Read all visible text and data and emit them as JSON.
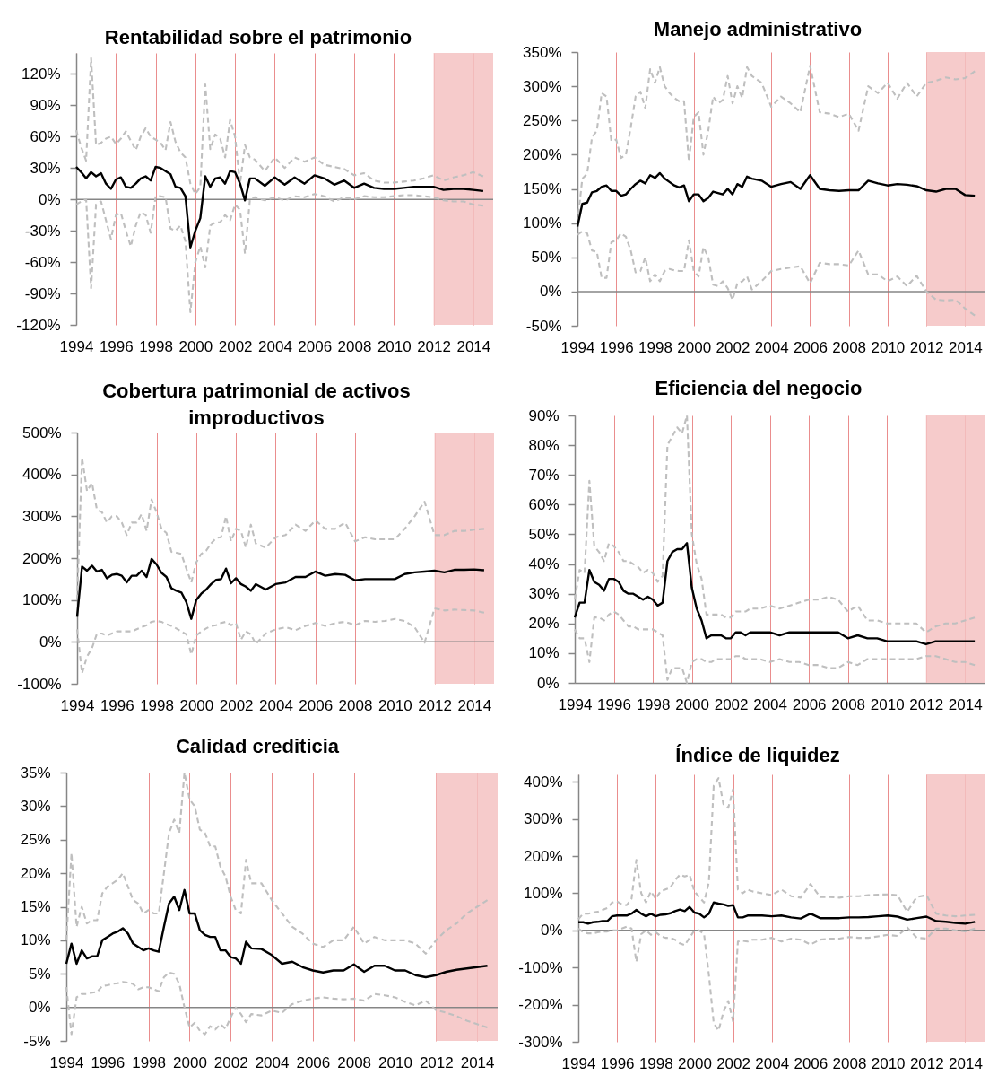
{
  "chart_data": [
    {
      "type": "line",
      "title": "Rentabilidad sobre el patrimonio",
      "x": [
        1994,
        1994.25,
        1994.5,
        1994.75,
        1995,
        1995.25,
        1995.5,
        1995.75,
        1996,
        1996.25,
        1996.5,
        1996.75,
        1997,
        1997.25,
        1997.5,
        1997.75,
        1998,
        1998.25,
        1998.5,
        1998.75,
        1999,
        1999.25,
        1999.5,
        1999.75,
        2000,
        2000.25,
        2000.5,
        2000.75,
        2001,
        2001.25,
        2001.5,
        2001.75,
        2002,
        2002.25,
        2002.5,
        2002.75,
        2003,
        2003.5,
        2004,
        2004.5,
        2005,
        2005.5,
        2006,
        2006.5,
        2007,
        2007.5,
        2008,
        2008.5,
        2009,
        2009.5,
        2010,
        2010.5,
        2011,
        2011.5,
        2012,
        2012.5,
        2013,
        2013.5,
        2014,
        2014.5
      ],
      "xlim": [
        1994,
        2015
      ],
      "xticks": [
        1994,
        1996,
        1998,
        2000,
        2002,
        2004,
        2006,
        2008,
        2010,
        2012,
        2014
      ],
      "ylim": [
        -120,
        140
      ],
      "yticks": [
        {
          "value": -120,
          "label": "-120%"
        },
        {
          "value": -90,
          "label": "-90%"
        },
        {
          "value": -60,
          "label": "-60%"
        },
        {
          "value": -30,
          "label": "-30%"
        },
        {
          "value": 0,
          "label": "0%"
        },
        {
          "value": 30,
          "label": "30%"
        },
        {
          "value": 60,
          "label": "60%"
        },
        {
          "value": 90,
          "label": "90%"
        },
        {
          "value": 120,
          "label": "120%"
        }
      ],
      "grid": "x",
      "ref_lines": [
        {
          "axis": "y",
          "value": 0,
          "color": "#868686"
        }
      ],
      "bands": [
        {
          "axis": "x",
          "from": 2012,
          "to": 2015,
          "color": "#f4c2c2"
        }
      ],
      "series": [
        {
          "color": "#bfbfbf",
          "line_style": "dashed",
          "values": [
            66,
            50,
            37,
            135,
            52,
            54,
            58,
            60,
            53,
            58,
            65,
            56,
            47,
            60,
            68,
            60,
            57,
            54,
            47,
            74,
            55,
            45,
            40,
            15,
            5,
            12,
            110,
            48,
            62,
            58,
            40,
            76,
            60,
            15,
            52,
            40,
            38,
            27,
            40,
            30,
            40,
            36,
            40,
            33,
            31,
            29,
            23,
            25,
            18,
            16,
            16,
            17,
            18,
            20,
            23,
            18,
            21,
            23,
            26,
            22
          ]
        },
        {
          "color": "#bfbfbf",
          "line_style": "dashed",
          "values": [
            -5,
            -2,
            0,
            -85,
            -5,
            -2,
            -20,
            -38,
            -15,
            -13,
            -30,
            -45,
            -25,
            -12,
            -15,
            -32,
            3,
            3,
            2,
            -28,
            -30,
            -25,
            -40,
            -108,
            -60,
            -45,
            -65,
            -25,
            -22,
            -22,
            -15,
            -20,
            -5,
            -10,
            -52,
            0,
            2,
            -1,
            2,
            -1,
            3,
            2,
            5,
            3,
            -2,
            2,
            0,
            3,
            2,
            2,
            3,
            4,
            4,
            3,
            2,
            -1,
            -2,
            -2,
            -5,
            -6
          ]
        },
        {
          "color": "#000000",
          "line_style": "solid",
          "values": [
            31,
            26,
            20,
            26,
            22,
            25,
            15,
            10,
            19,
            21,
            12,
            11,
            15,
            20,
            22,
            18,
            31,
            30,
            27,
            24,
            12,
            11,
            3,
            -46,
            -30,
            -18,
            22,
            12,
            20,
            21,
            15,
            27,
            26,
            15,
            -1,
            20,
            20,
            13,
            21,
            14,
            21,
            15,
            23,
            20,
            14,
            18,
            11,
            15,
            11,
            10,
            10,
            11,
            12,
            12,
            12,
            9,
            10,
            10,
            9,
            8
          ]
        }
      ]
    },
    {
      "type": "line",
      "title": "Manejo administrativo",
      "x": [
        1994,
        1994.25,
        1994.5,
        1994.75,
        1995,
        1995.25,
        1995.5,
        1995.75,
        1996,
        1996.25,
        1996.5,
        1996.75,
        1997,
        1997.25,
        1997.5,
        1997.75,
        1998,
        1998.25,
        1998.5,
        1998.75,
        1999,
        1999.25,
        1999.5,
        1999.75,
        2000,
        2000.25,
        2000.5,
        2000.75,
        2001,
        2001.25,
        2001.5,
        2001.75,
        2002,
        2002.25,
        2002.5,
        2002.75,
        2003,
        2003.5,
        2004,
        2004.5,
        2005,
        2005.5,
        2006,
        2006.5,
        2007,
        2007.5,
        2008,
        2008.5,
        2009,
        2009.5,
        2010,
        2010.5,
        2011,
        2011.5,
        2012,
        2012.5,
        2013,
        2013.5,
        2014,
        2014.5
      ],
      "xlim": [
        1994,
        2015
      ],
      "xticks": [
        1994,
        1996,
        1998,
        2000,
        2002,
        2004,
        2006,
        2008,
        2010,
        2012,
        2014
      ],
      "ylim": [
        -50,
        350
      ],
      "yticks": [
        {
          "value": -50,
          "label": "-50%"
        },
        {
          "value": 0,
          "label": "0%"
        },
        {
          "value": 50,
          "label": "50%"
        },
        {
          "value": 100,
          "label": "100%"
        },
        {
          "value": 150,
          "label": "150%"
        },
        {
          "value": 200,
          "label": "200%"
        },
        {
          "value": 250,
          "label": "250%"
        },
        {
          "value": 300,
          "label": "300%"
        },
        {
          "value": 350,
          "label": "350%"
        }
      ],
      "grid": "x",
      "ref_lines": [
        {
          "axis": "y",
          "value": 0,
          "color": "#868686"
        }
      ],
      "bands": [
        {
          "axis": "x",
          "from": 2012,
          "to": 2015,
          "color": "#f4c2c2"
        }
      ],
      "series": [
        {
          "color": "#bfbfbf",
          "line_style": "dashed",
          "values": [
            100,
            165,
            172,
            225,
            235,
            290,
            285,
            220,
            222,
            195,
            200,
            240,
            285,
            292,
            268,
            325,
            305,
            328,
            300,
            290,
            283,
            278,
            278,
            190,
            255,
            262,
            200,
            235,
            285,
            275,
            280,
            315,
            275,
            300,
            283,
            328,
            315,
            305,
            270,
            285,
            275,
            262,
            330,
            262,
            260,
            255,
            260,
            235,
            300,
            290,
            305,
            282,
            305,
            285,
            305,
            308,
            313,
            310,
            312,
            322
          ]
        },
        {
          "color": "#bfbfbf",
          "line_style": "dashed",
          "values": [
            83,
            88,
            85,
            60,
            58,
            20,
            20,
            72,
            75,
            85,
            80,
            60,
            28,
            30,
            50,
            15,
            25,
            15,
            30,
            33,
            31,
            30,
            30,
            75,
            30,
            22,
            65,
            50,
            10,
            8,
            15,
            5,
            -12,
            12,
            15,
            22,
            3,
            15,
            30,
            33,
            35,
            37,
            12,
            42,
            40,
            40,
            38,
            60,
            25,
            25,
            15,
            22,
            8,
            23,
            0,
            -12,
            -13,
            -12,
            -25,
            -35
          ]
        },
        {
          "color": "#000000",
          "line_style": "solid",
          "values": [
            95,
            128,
            130,
            145,
            147,
            153,
            155,
            147,
            147,
            140,
            142,
            150,
            157,
            162,
            158,
            170,
            166,
            173,
            165,
            160,
            155,
            152,
            155,
            132,
            142,
            142,
            132,
            137,
            146,
            144,
            142,
            150,
            142,
            157,
            153,
            168,
            165,
            162,
            153,
            157,
            160,
            150,
            170,
            150,
            148,
            147,
            148,
            148,
            162,
            158,
            155,
            157,
            156,
            154,
            148,
            146,
            150,
            150,
            141,
            140
          ]
        }
      ]
    },
    {
      "type": "line",
      "title": "Cobertura patrimonial de activos improductivos",
      "x": [
        1994,
        1994.25,
        1994.5,
        1994.75,
        1995,
        1995.25,
        1995.5,
        1995.75,
        1996,
        1996.25,
        1996.5,
        1996.75,
        1997,
        1997.25,
        1997.5,
        1997.75,
        1998,
        1998.25,
        1998.5,
        1998.75,
        1999,
        1999.25,
        1999.5,
        1999.75,
        2000,
        2000.25,
        2000.5,
        2000.75,
        2001,
        2001.25,
        2001.5,
        2001.75,
        2002,
        2002.25,
        2002.5,
        2002.75,
        2003,
        2003.5,
        2004,
        2004.5,
        2005,
        2005.5,
        2006,
        2006.5,
        2007,
        2007.5,
        2008,
        2008.5,
        2009,
        2009.5,
        2010,
        2010.5,
        2011,
        2011.5,
        2012,
        2012.5,
        2013,
        2013.5,
        2014,
        2014.5
      ],
      "xlim": [
        1994,
        2015
      ],
      "xticks": [
        1994,
        1996,
        1998,
        2000,
        2002,
        2004,
        2006,
        2008,
        2010,
        2012,
        2014
      ],
      "ylim": [
        -100,
        500
      ],
      "yticks": [
        {
          "value": -100,
          "label": "-100%"
        },
        {
          "value": 0,
          "label": "0%"
        },
        {
          "value": 100,
          "label": "100%"
        },
        {
          "value": 200,
          "label": "200%"
        },
        {
          "value": 300,
          "label": "300%"
        },
        {
          "value": 400,
          "label": "400%"
        },
        {
          "value": 500,
          "label": "500%"
        }
      ],
      "grid": "x",
      "ref_lines": [
        {
          "axis": "y",
          "value": 0,
          "color": "#868686"
        }
      ],
      "bands": [
        {
          "axis": "x",
          "from": 2012,
          "to": 2015,
          "color": "#f4c2c2"
        }
      ],
      "series": [
        {
          "color": "#bfbfbf",
          "line_style": "dashed",
          "values": [
            100,
            440,
            360,
            380,
            315,
            310,
            285,
            300,
            300,
            285,
            255,
            285,
            285,
            305,
            265,
            340,
            310,
            270,
            260,
            215,
            213,
            210,
            175,
            142,
            190,
            210,
            218,
            235,
            248,
            250,
            300,
            240,
            270,
            265,
            225,
            280,
            235,
            225,
            250,
            255,
            280,
            265,
            290,
            270,
            270,
            285,
            240,
            250,
            245,
            245,
            245,
            270,
            300,
            335,
            255,
            255,
            265,
            265,
            268,
            270
          ]
        },
        {
          "color": "#bfbfbf",
          "line_style": "dashed",
          "values": [
            30,
            -75,
            -35,
            -15,
            20,
            20,
            15,
            20,
            25,
            25,
            25,
            25,
            30,
            35,
            40,
            48,
            50,
            48,
            42,
            38,
            32,
            25,
            18,
            -30,
            15,
            25,
            32,
            38,
            40,
            45,
            48,
            40,
            45,
            5,
            25,
            18,
            -5,
            20,
            30,
            35,
            28,
            38,
            45,
            38,
            45,
            48,
            40,
            50,
            48,
            50,
            55,
            50,
            35,
            -2,
            80,
            75,
            77,
            76,
            75,
            70
          ]
        },
        {
          "color": "#000000",
          "line_style": "solid",
          "values": [
            60,
            180,
            170,
            182,
            168,
            172,
            152,
            160,
            162,
            158,
            142,
            158,
            158,
            170,
            155,
            198,
            185,
            165,
            155,
            128,
            122,
            118,
            95,
            55,
            100,
            115,
            125,
            138,
            148,
            150,
            175,
            140,
            152,
            138,
            132,
            122,
            138,
            125,
            138,
            142,
            155,
            155,
            168,
            158,
            162,
            160,
            147,
            150,
            150,
            150,
            150,
            162,
            166,
            168,
            170,
            166,
            172,
            172,
            173,
            171
          ]
        }
      ]
    },
    {
      "type": "line",
      "title": "Eficiencia del negocio",
      "x": [
        1994,
        1994.25,
        1994.5,
        1994.75,
        1995,
        1995.25,
        1995.5,
        1995.75,
        1996,
        1996.25,
        1996.5,
        1996.75,
        1997,
        1997.25,
        1997.5,
        1997.75,
        1998,
        1998.25,
        1998.5,
        1998.75,
        1999,
        1999.25,
        1999.5,
        1999.75,
        2000,
        2000.25,
        2000.5,
        2000.75,
        2001,
        2001.25,
        2001.5,
        2001.75,
        2002,
        2002.25,
        2002.5,
        2002.75,
        2003,
        2003.5,
        2004,
        2004.5,
        2005,
        2005.5,
        2006,
        2006.5,
        2007,
        2007.5,
        2008,
        2008.5,
        2009,
        2009.5,
        2010,
        2010.5,
        2011,
        2011.5,
        2012,
        2012.5,
        2013,
        2013.5,
        2014,
        2014.5
      ],
      "xlim": [
        1994,
        2015
      ],
      "xticks": [
        1994,
        1996,
        1998,
        2000,
        2002,
        2004,
        2006,
        2008,
        2010,
        2012,
        2014
      ],
      "ylim": [
        0,
        90
      ],
      "yticks": [
        {
          "value": 0,
          "label": "0%"
        },
        {
          "value": 10,
          "label": "10%"
        },
        {
          "value": 20,
          "label": "20%"
        },
        {
          "value": 30,
          "label": "30%"
        },
        {
          "value": 40,
          "label": "40%"
        },
        {
          "value": 50,
          "label": "50%"
        },
        {
          "value": 60,
          "label": "60%"
        },
        {
          "value": 70,
          "label": "70%"
        },
        {
          "value": 80,
          "label": "80%"
        },
        {
          "value": 90,
          "label": "90%"
        }
      ],
      "grid": "x",
      "bands": [
        {
          "axis": "x",
          "from": 2012,
          "to": 2015,
          "color": "#f4c2c2"
        }
      ],
      "series": [
        {
          "color": "#bfbfbf",
          "line_style": "dashed",
          "values": [
            28,
            38,
            37,
            68,
            46,
            44,
            41,
            47,
            46,
            44,
            41,
            41,
            40,
            39,
            37,
            38,
            37,
            34,
            36,
            80,
            83,
            86,
            84,
            90,
            50,
            40,
            35,
            23,
            23,
            23,
            23,
            22,
            22,
            24,
            24,
            24,
            25,
            25,
            26,
            25,
            26,
            27,
            28,
            28,
            29,
            28,
            24,
            26,
            21,
            21,
            20,
            20,
            20,
            20,
            17,
            19,
            20,
            20,
            21,
            22
          ]
        },
        {
          "color": "#bfbfbf",
          "line_style": "dashed",
          "values": [
            18,
            15,
            15,
            7,
            22,
            22,
            21,
            23,
            24,
            23,
            21,
            19,
            19,
            18,
            18,
            18,
            18,
            17,
            16,
            1,
            5,
            5,
            5,
            0,
            7,
            8,
            8,
            7,
            7,
            8,
            8,
            8,
            8,
            9,
            9,
            8,
            8,
            8,
            7,
            8,
            7,
            7,
            6,
            6,
            5,
            5,
            7,
            6,
            8,
            8,
            8,
            8,
            8,
            8,
            9,
            9,
            8,
            7,
            7,
            6
          ]
        },
        {
          "color": "#000000",
          "line_style": "solid",
          "values": [
            22,
            27,
            27,
            38,
            34,
            33,
            31,
            35,
            35,
            34,
            31,
            30,
            30,
            29,
            28,
            29,
            28,
            26,
            27,
            41,
            44,
            45,
            45,
            47,
            32,
            25,
            21,
            15,
            16,
            16,
            16,
            15,
            15,
            17,
            17,
            16,
            17,
            17,
            17,
            16,
            17,
            17,
            17,
            17,
            17,
            17,
            15,
            16,
            15,
            15,
            14,
            14,
            14,
            14,
            13,
            14,
            14,
            14,
            14,
            14
          ]
        }
      ]
    },
    {
      "type": "line",
      "title": "Calidad crediticia",
      "x": [
        1994,
        1994.25,
        1994.5,
        1994.75,
        1995,
        1995.25,
        1995.5,
        1995.75,
        1996,
        1996.25,
        1996.5,
        1996.75,
        1997,
        1997.25,
        1997.5,
        1997.75,
        1998,
        1998.25,
        1998.5,
        1998.75,
        1999,
        1999.25,
        1999.5,
        1999.75,
        2000,
        2000.25,
        2000.5,
        2000.75,
        2001,
        2001.25,
        2001.5,
        2001.75,
        2002,
        2002.25,
        2002.5,
        2002.75,
        2003,
        2003.5,
        2004,
        2004.5,
        2005,
        2005.5,
        2006,
        2006.5,
        2007,
        2007.5,
        2008,
        2008.5,
        2009,
        2009.5,
        2010,
        2010.5,
        2011,
        2011.5,
        2012,
        2012.5,
        2013,
        2013.5,
        2014,
        2014.5
      ],
      "xlim": [
        1994,
        2015
      ],
      "xticks": [
        1994,
        1996,
        1998,
        2000,
        2002,
        2004,
        2006,
        2008,
        2010,
        2012,
        2014
      ],
      "ylim": [
        -5,
        35
      ],
      "yticks": [
        {
          "value": -5,
          "label": "-5%"
        },
        {
          "value": 0,
          "label": "0%"
        },
        {
          "value": 5,
          "label": "5%"
        },
        {
          "value": 10,
          "label": "10%"
        },
        {
          "value": 15,
          "label": "15%"
        },
        {
          "value": 20,
          "label": "20%"
        },
        {
          "value": 25,
          "label": "25%"
        },
        {
          "value": 30,
          "label": "30%"
        },
        {
          "value": 35,
          "label": "35%"
        }
      ],
      "grid": "x",
      "ref_lines": [
        {
          "axis": "y",
          "value": 0,
          "color": "#868686"
        }
      ],
      "bands": [
        {
          "axis": "x",
          "from": 2012,
          "to": 2015,
          "color": "#f4c2c2"
        }
      ],
      "series": [
        {
          "color": "#bfbfbf",
          "line_style": "dashed",
          "values": [
            10,
            23,
            12,
            15,
            12.5,
            13,
            13,
            17,
            18,
            18.5,
            19,
            20,
            18,
            16,
            15.5,
            14,
            14.5,
            14,
            14,
            20,
            26,
            28,
            26,
            35,
            31,
            30,
            26.5,
            26,
            24,
            24,
            21,
            19.5,
            16.5,
            14.5,
            14,
            22,
            18.5,
            18.5,
            16,
            14,
            12,
            11,
            9.5,
            9,
            10,
            10,
            12,
            9.5,
            10.5,
            10,
            10,
            10,
            9.5,
            8,
            10,
            11.5,
            12.5,
            14,
            15,
            16
          ]
        },
        {
          "color": "#bfbfbf",
          "line_style": "dashed",
          "values": [
            3,
            -4,
            1.5,
            2,
            2,
            2.2,
            2.3,
            3.2,
            3.3,
            3.5,
            3.6,
            3.8,
            3.7,
            3.5,
            2.7,
            3,
            3,
            2.7,
            2.4,
            4.5,
            5.2,
            5,
            3.5,
            0,
            -3,
            -2.3,
            -3.5,
            -4,
            -2.8,
            -3.3,
            -2.5,
            -3.2,
            -1.5,
            0,
            -1,
            -2.2,
            -1,
            -1.2,
            -0.5,
            -0.8,
            0.5,
            1,
            1.3,
            1.5,
            1.3,
            1.2,
            1.3,
            1,
            2,
            1.8,
            1.5,
            0.8,
            0.3,
            1,
            -0.4,
            -0.8,
            -1.3,
            -2,
            -2.5,
            -3
          ]
        },
        {
          "color": "#000000",
          "line_style": "solid",
          "values": [
            6.5,
            9.5,
            6.5,
            8.5,
            7.3,
            7.6,
            7.6,
            10,
            10.5,
            11,
            11.3,
            11.8,
            11,
            9.5,
            9,
            8.5,
            8.8,
            8.5,
            8.3,
            12,
            15.5,
            16.5,
            14.5,
            17.5,
            14,
            14,
            11.5,
            10.8,
            10.5,
            10.5,
            8.5,
            8.5,
            7.5,
            7.3,
            6.5,
            9.8,
            8.8,
            8.7,
            7.8,
            6.5,
            6.8,
            6,
            5.5,
            5.2,
            5.5,
            5.5,
            6.4,
            5.3,
            6.2,
            6.2,
            5.5,
            5.5,
            4.8,
            4.5,
            4.8,
            5.3,
            5.6,
            5.8,
            6,
            6.2
          ]
        }
      ]
    },
    {
      "type": "line",
      "title": "Índice de liquidez",
      "x": [
        1994,
        1994.25,
        1994.5,
        1994.75,
        1995,
        1995.25,
        1995.5,
        1995.75,
        1996,
        1996.25,
        1996.5,
        1996.75,
        1997,
        1997.25,
        1997.5,
        1997.75,
        1998,
        1998.25,
        1998.5,
        1998.75,
        1999,
        1999.25,
        1999.5,
        1999.75,
        2000,
        2000.25,
        2000.5,
        2000.75,
        2001,
        2001.25,
        2001.5,
        2001.75,
        2002,
        2002.25,
        2002.5,
        2002.75,
        2003,
        2003.5,
        2004,
        2004.5,
        2005,
        2005.5,
        2006,
        2006.5,
        2007,
        2007.5,
        2008,
        2008.5,
        2009,
        2009.5,
        2010,
        2010.5,
        2011,
        2011.5,
        2012,
        2012.5,
        2013,
        2013.5,
        2014,
        2014.5
      ],
      "xlim": [
        1994,
        2015
      ],
      "xticks": [
        1994,
        1996,
        1998,
        2000,
        2002,
        2004,
        2006,
        2008,
        2010,
        2012,
        2014
      ],
      "ylim": [
        -300,
        420
      ],
      "yticks": [
        {
          "value": -300,
          "label": "-300%"
        },
        {
          "value": -200,
          "label": "-200%"
        },
        {
          "value": -100,
          "label": "-100%"
        },
        {
          "value": 0,
          "label": "0%"
        },
        {
          "value": 100,
          "label": "100%"
        },
        {
          "value": 200,
          "label": "200%"
        },
        {
          "value": 300,
          "label": "300%"
        },
        {
          "value": 400,
          "label": "400%"
        }
      ],
      "grid": "x",
      "ref_lines": [
        {
          "axis": "y",
          "value": 0,
          "color": "#868686"
        }
      ],
      "bands": [
        {
          "axis": "x",
          "from": 2012,
          "to": 2015,
          "color": "#f4c2c2"
        }
      ],
      "series": [
        {
          "color": "#bfbfbf",
          "line_style": "dashed",
          "values": [
            30,
            45,
            45,
            48,
            50,
            55,
            60,
            75,
            78,
            70,
            68,
            85,
            190,
            100,
            75,
            105,
            85,
            105,
            110,
            115,
            135,
            150,
            145,
            150,
            105,
            90,
            75,
            130,
            390,
            410,
            340,
            330,
            380,
            110,
            100,
            110,
            105,
            100,
            95,
            110,
            92,
            88,
            125,
            90,
            90,
            88,
            92,
            92,
            95,
            96,
            97,
            95,
            50,
            90,
            95,
            45,
            40,
            38,
            40,
            42
          ]
        },
        {
          "color": "#bfbfbf",
          "line_style": "dashed",
          "values": [
            5,
            -5,
            -8,
            -8,
            -5,
            -3,
            -3,
            0,
            0,
            5,
            10,
            5,
            -85,
            -10,
            0,
            -12,
            -5,
            -15,
            -20,
            -20,
            -25,
            -35,
            -40,
            -20,
            0,
            0,
            -10,
            -120,
            -250,
            -270,
            -220,
            -190,
            -245,
            -30,
            -28,
            -30,
            -25,
            -25,
            -20,
            -30,
            -22,
            -25,
            -38,
            -25,
            -22,
            -22,
            -18,
            -20,
            -20,
            -16,
            -12,
            -15,
            8,
            -20,
            -22,
            5,
            5,
            0,
            -3,
            5
          ]
        },
        {
          "color": "#000000",
          "line_style": "solid",
          "values": [
            22,
            22,
            18,
            22,
            23,
            25,
            25,
            38,
            40,
            40,
            40,
            45,
            55,
            45,
            38,
            45,
            38,
            42,
            43,
            46,
            52,
            56,
            52,
            63,
            48,
            45,
            35,
            45,
            75,
            72,
            70,
            66,
            68,
            35,
            35,
            40,
            40,
            40,
            38,
            40,
            35,
            32,
            45,
            33,
            33,
            33,
            35,
            35,
            36,
            38,
            40,
            37,
            29,
            33,
            37,
            25,
            23,
            20,
            18,
            23
          ]
        }
      ]
    }
  ]
}
